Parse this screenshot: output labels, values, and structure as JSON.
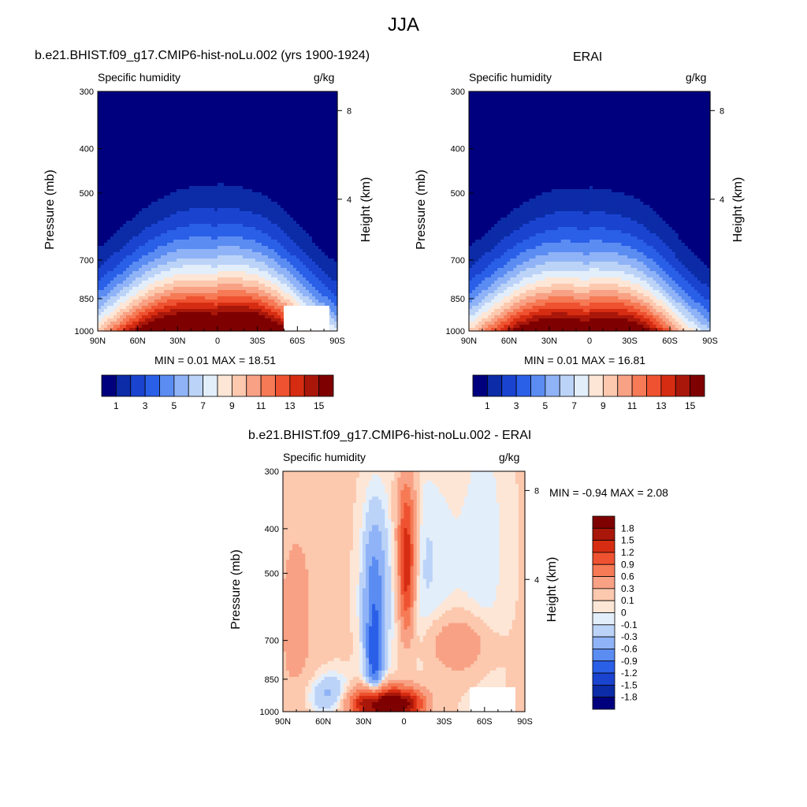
{
  "title": "JJA",
  "colors": {
    "seq": [
      "#00007f",
      "#0c2ba7",
      "#1a44d0",
      "#2a5fe8",
      "#5b8cf2",
      "#8fb3f6",
      "#bcd3f8",
      "#e3eefb",
      "#fde6d6",
      "#fcc8ae",
      "#f8a184",
      "#f57a55",
      "#ee5230",
      "#d62d12",
      "#a9170a",
      "#7f0000"
    ],
    "diff": [
      "#00007f",
      "#0c2ba7",
      "#1a44d0",
      "#2a5fe8",
      "#5b8cf2",
      "#8fb3f6",
      "#bcd3f8",
      "#e3eefb",
      "#fde6d6",
      "#fcc8ae",
      "#f8a184",
      "#f57a55",
      "#ee5230",
      "#d62d12",
      "#a9170a",
      "#7f0000"
    ]
  },
  "panels": [
    {
      "id": "model",
      "title": "b.e21.BHIST.f09_g17.CMIP6-hist-noLu.002 (yrs 1900-1924)",
      "left_label": "Specific humidity",
      "right_label": "g/kg",
      "min_max": "MIN =   0.01  MAX =  18.51"
    },
    {
      "id": "erai",
      "title": "ERAI",
      "left_label": "Specific humidity",
      "right_label": "g/kg",
      "min_max": "MIN =   0.01  MAX =  16.81"
    },
    {
      "id": "diff",
      "title": "b.e21.BHIST.f09_g17.CMIP6-hist-noLu.002 - ERAI",
      "left_label": "Specific humidity",
      "right_label": "g/kg",
      "min_max": "MIN =  -0.94  MAX =   2.08"
    }
  ],
  "axes": {
    "ylabel": "Pressure (mb)",
    "y2label": "Height (km)",
    "pressure_ticks": [
      "300",
      "400",
      "500",
      "700",
      "850",
      "1000"
    ],
    "height_ticks": [
      "8",
      "4"
    ],
    "lat_ticks": [
      "90N",
      "60N",
      "30N",
      "0",
      "30S",
      "60S",
      "90S"
    ]
  },
  "colorbars": {
    "seq_labels": [
      "1",
      "3",
      "5",
      "7",
      "9",
      "11",
      "13",
      "15"
    ],
    "diff_labels": [
      "1.8",
      "1.5",
      "1.2",
      "0.9",
      "0.6",
      "0.3",
      "0.1",
      "0",
      "-0.1",
      "-0.3",
      "-0.6",
      "-0.9",
      "-1.2",
      "-1.5",
      "-1.8"
    ]
  },
  "chart_data": [
    {
      "type": "heatmap",
      "title": "b.e21.BHIST.f09_g17.CMIP6-hist-noLu.002 (yrs 1900-1924)",
      "subtitle": "Specific humidity",
      "units": "g/kg",
      "xlabel": "",
      "ylabel": "Pressure (mb)",
      "y2label": "Height (km)",
      "xlim": [
        90,
        -90
      ],
      "ylim": [
        1000,
        300
      ],
      "y_scale": "log",
      "min": 0.01,
      "max": 18.51,
      "peak_lat": 7,
      "levels": [
        1,
        2,
        3,
        4,
        5,
        6,
        7,
        8,
        9,
        10,
        11,
        12,
        13,
        14,
        15
      ]
    },
    {
      "type": "heatmap",
      "title": "ERAI",
      "subtitle": "Specific humidity",
      "units": "g/kg",
      "xlabel": "",
      "ylabel": "Pressure (mb)",
      "y2label": "Height (km)",
      "xlim": [
        90,
        -90
      ],
      "ylim": [
        1000,
        300
      ],
      "y_scale": "log",
      "min": 0.01,
      "max": 16.81,
      "peak_lat": 10,
      "levels": [
        1,
        2,
        3,
        4,
        5,
        6,
        7,
        8,
        9,
        10,
        11,
        12,
        13,
        14,
        15
      ]
    },
    {
      "type": "heatmap",
      "title": "b.e21.BHIST.f09_g17.CMIP6-hist-noLu.002 - ERAI",
      "subtitle": "Specific humidity",
      "units": "g/kg",
      "xlabel": "",
      "ylabel": "Pressure (mb)",
      "y2label": "Height (km)",
      "xlim": [
        90,
        -90
      ],
      "ylim": [
        1000,
        300
      ],
      "y_scale": "log",
      "min": -0.94,
      "max": 2.08,
      "levels": [
        -1.8,
        -1.5,
        -1.2,
        -0.9,
        -0.6,
        -0.3,
        -0.1,
        0,
        0.1,
        0.3,
        0.6,
        0.9,
        1.2,
        1.5,
        1.8
      ]
    }
  ]
}
